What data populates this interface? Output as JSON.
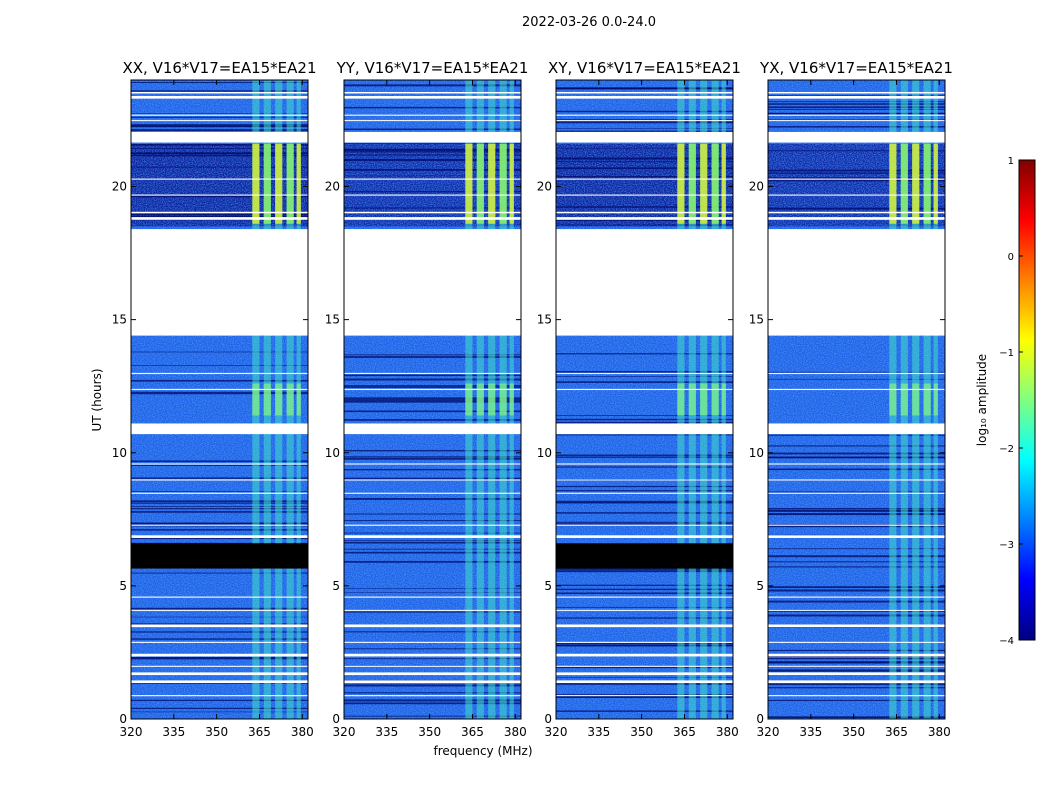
{
  "chart_data": {
    "type": "heatmap",
    "suptitle": "2022-03-26 0.0-24.0",
    "xlabel": "frequency (MHz)",
    "ylabel": "UT (hours)",
    "xlim": [
      320,
      382
    ],
    "ylim": [
      0,
      24
    ],
    "xticks": [
      320,
      335,
      350,
      365,
      380
    ],
    "yticks": [
      0,
      5,
      10,
      15,
      20
    ],
    "panels": [
      {
        "title": "XX, V16*V17=EA15*EA21",
        "flagged_black": [
          [
            5.65,
            6.6
          ]
        ]
      },
      {
        "title": "YY, V16*V17=EA15*EA21",
        "flagged_black": []
      },
      {
        "title": "XY, V16*V17=EA15*EA21",
        "flagged_black": [
          [
            5.65,
            6.6
          ]
        ]
      },
      {
        "title": "YX, V16*V17=EA15*EA21",
        "flagged_black": []
      }
    ],
    "data_gaps_hours": [
      [
        1.35,
        1.45
      ],
      [
        1.65,
        1.75
      ],
      [
        2.35,
        2.45
      ],
      [
        3.45,
        3.55
      ],
      [
        6.8,
        6.9
      ],
      [
        10.7,
        11.1
      ],
      [
        14.4,
        18.4
      ],
      [
        18.75,
        18.85
      ],
      [
        19.0,
        19.05
      ],
      [
        21.65,
        22.05
      ],
      [
        23.3,
        23.4
      ],
      [
        23.5,
        23.55
      ]
    ],
    "rfi_bands_mhz": [
      [
        362.5,
        365.0
      ],
      [
        366.5,
        369.0
      ],
      [
        370.5,
        373.0
      ],
      [
        374.5,
        377.0
      ],
      [
        378.0,
        379.5
      ]
    ],
    "colorbar": {
      "label": "log₁₀ amplitude",
      "range": [
        -4,
        1
      ],
      "ticks": [
        -4,
        -3,
        -2,
        -1,
        0,
        1
      ],
      "tick_labels": [
        "−4",
        "−3",
        "−2",
        "−1",
        "0",
        "1"
      ],
      "colormap": [
        "#000080",
        "#0000ff",
        "#0080ff",
        "#00ffff",
        "#80ff80",
        "#ffff00",
        "#ff8000",
        "#ff0000",
        "#800000"
      ]
    }
  }
}
